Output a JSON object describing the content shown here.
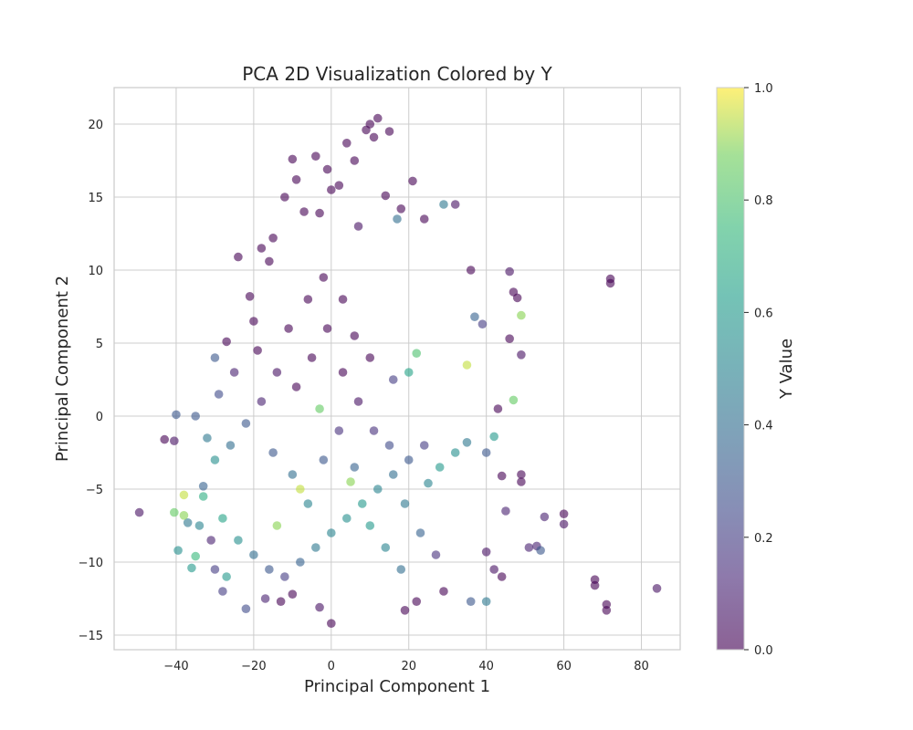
{
  "chart_data": {
    "type": "scatter",
    "title": "PCA 2D Visualization Colored by Y",
    "xlabel": "Principal Component 1",
    "ylabel": "Principal Component 2",
    "xlim": [
      -56,
      90
    ],
    "ylim": [
      -16,
      22.5
    ],
    "xticks": [
      -40,
      -20,
      0,
      20,
      40,
      60,
      80
    ],
    "yticks": [
      -15,
      -10,
      -5,
      0,
      5,
      10,
      15,
      20
    ],
    "grid": true,
    "colormap": "viridis",
    "colorbar": {
      "label": "Y Value",
      "range": [
        0.0,
        1.0
      ],
      "ticks": [
        "0.0",
        "0.2",
        "0.4",
        "0.6",
        "0.8",
        "1.0"
      ]
    },
    "point_alpha": 0.6,
    "colors": {
      "low": "#440154",
      "mid": "#21918c",
      "high": "#fde725",
      "grid": "#cccccc",
      "spine": "#cccccc"
    },
    "points": [
      [
        -49.5,
        -6.6,
        0.05
      ],
      [
        -43,
        -1.6,
        0.0
      ],
      [
        -40.5,
        -1.7,
        0.05
      ],
      [
        -40,
        0.1,
        0.3
      ],
      [
        -40.5,
        -6.6,
        0.85
      ],
      [
        -39.5,
        -9.2,
        0.55
      ],
      [
        -38,
        -5.4,
        0.95
      ],
      [
        -37,
        -7.3,
        0.45
      ],
      [
        -36,
        -10.4,
        0.6
      ],
      [
        -35,
        -9.6,
        0.75
      ],
      [
        -34,
        -7.5,
        0.5
      ],
      [
        -33,
        -4.8,
        0.35
      ],
      [
        -31,
        -8.5,
        0.1
      ],
      [
        -30,
        4.0,
        0.3
      ],
      [
        -30,
        -10.5,
        0.2
      ],
      [
        -28,
        -12.0,
        0.2
      ],
      [
        -27,
        5.1,
        0.0
      ],
      [
        -24,
        10.9,
        0.0
      ],
      [
        -22,
        -13.2,
        0.25
      ],
      [
        -21,
        8.2,
        0.0
      ],
      [
        -20,
        6.5,
        0.0
      ],
      [
        -18,
        11.5,
        0.0
      ],
      [
        -17,
        -12.5,
        0.1
      ],
      [
        -16,
        10.6,
        0.0
      ],
      [
        -15,
        12.2,
        0.0
      ],
      [
        -12,
        15.0,
        0.0
      ],
      [
        -10,
        17.6,
        0.0
      ],
      [
        -9,
        16.2,
        0.0
      ],
      [
        -7,
        14.0,
        0.0
      ],
      [
        -4,
        17.8,
        0.0
      ],
      [
        -3,
        13.9,
        0.0
      ],
      [
        -1,
        16.9,
        0.0
      ],
      [
        0,
        15.5,
        0.0
      ],
      [
        2,
        15.8,
        0.0
      ],
      [
        4,
        18.7,
        0.0
      ],
      [
        6,
        17.5,
        0.0
      ],
      [
        7,
        13.0,
        0.05
      ],
      [
        9,
        19.6,
        0.0
      ],
      [
        10,
        20.0,
        0.0
      ],
      [
        11,
        19.1,
        0.0
      ],
      [
        12,
        20.4,
        0.0
      ],
      [
        14,
        15.1,
        0.0
      ],
      [
        15,
        19.5,
        0.0
      ],
      [
        18,
        14.2,
        0.0
      ],
      [
        17,
        13.5,
        0.4
      ],
      [
        21,
        16.1,
        0.0
      ],
      [
        24,
        13.5,
        0.0
      ],
      [
        29,
        14.5,
        0.45
      ],
      [
        32,
        14.5,
        0.05
      ],
      [
        36,
        10.0,
        0.0
      ],
      [
        46,
        9.9,
        0.05
      ],
      [
        47,
        8.5,
        0.0
      ],
      [
        48,
        8.1,
        0.0
      ],
      [
        46,
        5.3,
        0.0
      ],
      [
        37,
        6.8,
        0.35
      ],
      [
        39,
        6.3,
        0.2
      ],
      [
        49,
        6.9,
        0.9
      ],
      [
        49,
        4.2,
        0.05
      ],
      [
        35,
        3.5,
        0.95
      ],
      [
        47,
        1.1,
        0.85
      ],
      [
        43,
        0.5,
        0.0
      ],
      [
        42,
        -1.4,
        0.6
      ],
      [
        40,
        -2.5,
        0.3
      ],
      [
        44,
        -4.1,
        0.0
      ],
      [
        49,
        -4.0,
        0.0
      ],
      [
        49,
        -4.5,
        0.0
      ],
      [
        45,
        -6.5,
        0.1
      ],
      [
        55,
        -6.9,
        0.1
      ],
      [
        60,
        -6.7,
        0.0
      ],
      [
        60,
        -7.4,
        0.05
      ],
      [
        51,
        -9.0,
        0.1
      ],
      [
        53,
        -8.9,
        0.1
      ],
      [
        54,
        -9.2,
        0.3
      ],
      [
        42,
        -10.5,
        0.05
      ],
      [
        44,
        -11.0,
        0.0
      ],
      [
        40,
        -12.7,
        0.45
      ],
      [
        36,
        -12.7,
        0.3
      ],
      [
        40,
        -9.3,
        0.05
      ],
      [
        29,
        -12.0,
        0.0
      ],
      [
        22,
        -12.7,
        0.0
      ],
      [
        19,
        -13.3,
        0.0
      ],
      [
        0,
        -14.2,
        0.0
      ],
      [
        -3,
        -13.1,
        0.05
      ],
      [
        -10,
        -12.2,
        0.0
      ],
      [
        -13,
        -12.7,
        0.0
      ],
      [
        68,
        -11.2,
        0.0
      ],
      [
        68,
        -11.6,
        0.0
      ],
      [
        71,
        -12.9,
        0.0
      ],
      [
        71,
        -13.3,
        0.0
      ],
      [
        72,
        9.4,
        0.0
      ],
      [
        72,
        9.1,
        0.0
      ],
      [
        84,
        -11.8,
        0.05
      ],
      [
        35,
        -1.8,
        0.45
      ],
      [
        32,
        -2.5,
        0.55
      ],
      [
        28,
        -3.5,
        0.6
      ],
      [
        25,
        -4.6,
        0.5
      ],
      [
        22,
        4.3,
        0.8
      ],
      [
        20,
        3.0,
        0.65
      ],
      [
        16,
        2.5,
        0.2
      ],
      [
        10,
        4.0,
        0.0
      ],
      [
        6,
        5.5,
        0.0
      ],
      [
        3,
        8.0,
        0.0
      ],
      [
        -2,
        9.5,
        0.0
      ],
      [
        -6,
        8.0,
        0.0
      ],
      [
        -11,
        6.0,
        0.0
      ],
      [
        -14,
        3.0,
        0.05
      ],
      [
        -18,
        1.0,
        0.1
      ],
      [
        -22,
        -0.5,
        0.3
      ],
      [
        -26,
        -2.0,
        0.4
      ],
      [
        -30,
        -3.0,
        0.55
      ],
      [
        -33,
        -5.5,
        0.7
      ],
      [
        -28,
        -7.0,
        0.65
      ],
      [
        -24,
        -8.5,
        0.55
      ],
      [
        -20,
        -9.5,
        0.4
      ],
      [
        -16,
        -10.5,
        0.3
      ],
      [
        -12,
        -11.0,
        0.2
      ],
      [
        -8,
        -10.0,
        0.35
      ],
      [
        -4,
        -9.0,
        0.45
      ],
      [
        0,
        -8.0,
        0.5
      ],
      [
        4,
        -7.0,
        0.55
      ],
      [
        8,
        -6.0,
        0.6
      ],
      [
        12,
        -5.0,
        0.5
      ],
      [
        16,
        -4.0,
        0.4
      ],
      [
        20,
        -3.0,
        0.3
      ],
      [
        24,
        -2.0,
        0.2
      ],
      [
        -9,
        2.0,
        0.0
      ],
      [
        -5,
        4.0,
        0.0
      ],
      [
        -1,
        6.0,
        0.0
      ],
      [
        3,
        3.0,
        0.0
      ],
      [
        7,
        1.0,
        0.05
      ],
      [
        11,
        -1.0,
        0.15
      ],
      [
        15,
        -2.0,
        0.25
      ],
      [
        19,
        -6.0,
        0.45
      ],
      [
        23,
        -8.0,
        0.35
      ],
      [
        27,
        -9.5,
        0.15
      ],
      [
        -35,
        0.0,
        0.3
      ],
      [
        -32,
        -1.5,
        0.45
      ],
      [
        -29,
        1.5,
        0.25
      ],
      [
        -25,
        3.0,
        0.1
      ],
      [
        -19,
        4.5,
        0.0
      ],
      [
        -15,
        -2.5,
        0.3
      ],
      [
        -10,
        -4.0,
        0.4
      ],
      [
        -6,
        -6.0,
        0.5
      ],
      [
        -2,
        -3.0,
        0.3
      ],
      [
        2,
        -1.0,
        0.15
      ],
      [
        6,
        -3.5,
        0.35
      ],
      [
        10,
        -7.5,
        0.6
      ],
      [
        14,
        -9.0,
        0.5
      ],
      [
        18,
        -10.5,
        0.4
      ],
      [
        -38,
        -6.8,
        0.9
      ],
      [
        -27,
        -11.0,
        0.6
      ],
      [
        -14,
        -7.5,
        0.9
      ],
      [
        -8,
        -5.0,
        0.95
      ],
      [
        5,
        -4.5,
        0.9
      ],
      [
        -3,
        0.5,
        0.85
      ]
    ]
  }
}
